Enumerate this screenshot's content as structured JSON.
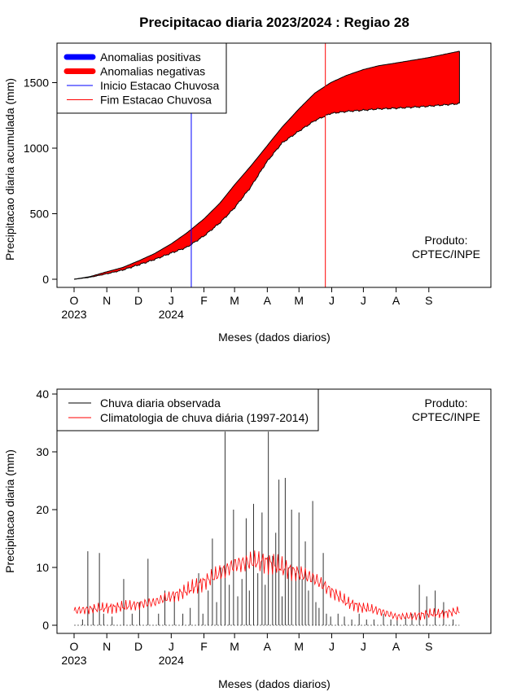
{
  "chart_data": [
    {
      "type": "area",
      "title": "Precipitacao diaria 2023/2024 : Regiao 28",
      "xlabel": "Meses (dados diarios)",
      "ylabel": "Precipitacao diaria acumulada (mm)",
      "ylim": [
        0,
        1750
      ],
      "yticks": [
        0,
        500,
        1000,
        1500
      ],
      "x_ticks": [
        "O",
        "N",
        "D",
        "J",
        "F",
        "M",
        "A",
        "M",
        "J",
        "J",
        "A",
        "S"
      ],
      "year_labels": [
        "2023",
        "2024"
      ],
      "x_unit": "days since 1 Oct 2023",
      "xlim": [
        0,
        366
      ],
      "legend_position": "top-left",
      "legend": [
        {
          "label": "Anomalias positivas",
          "color": "#0000ff",
          "style": "thick"
        },
        {
          "label": "Anomalias negativas",
          "color": "#ff0000",
          "style": "thick"
        },
        {
          "label": "Inicio Estacao Chuvosa",
          "color": "#0000ff",
          "style": "thin"
        },
        {
          "label": "Fim Estacao Chuvosa",
          "color": "#ff0000",
          "style": "thin"
        }
      ],
      "credit": [
        "Produto:",
        "CPTEC/INPE"
      ],
      "onset_day": 111,
      "end_day": 238,
      "series": [
        {
          "name": "Climatologia acumulada",
          "x": [
            0,
            15,
            30,
            46,
            61,
            76,
            92,
            107,
            123,
            138,
            152,
            167,
            182,
            197,
            213,
            228,
            243,
            258,
            274,
            289,
            305,
            320,
            335,
            350,
            365
          ],
          "values": [
            0,
            20,
            55,
            90,
            140,
            195,
            270,
            355,
            460,
            580,
            720,
            860,
            1010,
            1160,
            1300,
            1420,
            1500,
            1555,
            1600,
            1630,
            1650,
            1670,
            1690,
            1715,
            1740
          ]
        },
        {
          "name": "Observado acumulado",
          "x": [
            0,
            15,
            30,
            46,
            61,
            76,
            92,
            107,
            123,
            138,
            152,
            167,
            182,
            197,
            213,
            228,
            243,
            258,
            274,
            289,
            305,
            320,
            335,
            350,
            365
          ],
          "values": [
            0,
            15,
            40,
            70,
            110,
            150,
            200,
            245,
            330,
            430,
            545,
            700,
            890,
            1040,
            1130,
            1210,
            1265,
            1280,
            1290,
            1300,
            1305,
            1312,
            1320,
            1330,
            1340
          ]
        }
      ]
    },
    {
      "type": "line",
      "xlabel": "Meses (dados diarios)",
      "ylabel": "Precipitacao diaria (mm)",
      "ylim": [
        0,
        40
      ],
      "yticks": [
        0,
        10,
        20,
        30,
        40
      ],
      "x_ticks": [
        "O",
        "N",
        "D",
        "J",
        "F",
        "M",
        "A",
        "M",
        "J",
        "J",
        "A",
        "S"
      ],
      "year_labels": [
        "2023",
        "2024"
      ],
      "x_unit": "days since 1 Oct 2023",
      "xlim": [
        0,
        366
      ],
      "legend_position": "top-left",
      "legend": [
        {
          "label": "Chuva diaria observada",
          "color": "#000000"
        },
        {
          "label": "Climatologia de chuva diária (1997-2014)",
          "color": "#ff0000"
        }
      ],
      "credit": [
        "Produto:",
        "CPTEC/INPE"
      ],
      "series": [
        {
          "name": "Chuva diaria observada",
          "x": [
            8,
            13,
            18,
            24,
            28,
            36,
            47,
            55,
            62,
            70,
            80,
            86,
            95,
            103,
            110,
            118,
            122,
            127,
            131,
            135,
            139,
            143,
            147,
            151,
            155,
            159,
            163,
            166,
            170,
            174,
            178,
            181,
            184,
            188,
            191,
            194,
            197,
            200,
            203,
            206,
            210,
            213,
            216,
            219,
            222,
            226,
            229,
            232,
            236,
            239,
            243,
            250,
            256,
            263,
            270,
            277,
            284,
            293,
            300,
            306,
            314,
            320,
            327,
            334,
            342,
            350,
            359
          ],
          "values": [
            1,
            12.8,
            3,
            12.5,
            2,
            1.5,
            8,
            2,
            4,
            11.5,
            2,
            6,
            5,
            2,
            3,
            9,
            2,
            6,
            15,
            4,
            10,
            33.5,
            7,
            20,
            5,
            8,
            18.5,
            6,
            21,
            9,
            19.5,
            7,
            33.5,
            12,
            16,
            25.2,
            5,
            25.5,
            10,
            20,
            9,
            19.5,
            8,
            14.5,
            6,
            21.5,
            4,
            3,
            12.5,
            2,
            1.5,
            2,
            1.5,
            1,
            2,
            1,
            1,
            2,
            1,
            1,
            1.5,
            2,
            7,
            5,
            6,
            4,
            1
          ]
        },
        {
          "name": "Climatologia de chuva diária (1997-2014)",
          "x": [
            0,
            15,
            30,
            46,
            61,
            76,
            92,
            107,
            123,
            138,
            152,
            167,
            182,
            197,
            213,
            228,
            243,
            258,
            274,
            289,
            305,
            320,
            335,
            350,
            365
          ],
          "values": [
            2.5,
            2.8,
            3.0,
            3.2,
            3.6,
            4.0,
            5.0,
            6.0,
            7.5,
            9.0,
            10.5,
            11.0,
            11.0,
            10.0,
            9.0,
            8.0,
            6.0,
            4.0,
            3.0,
            2.5,
            1.5,
            1.5,
            2.0,
            2.0,
            2.5
          ]
        }
      ]
    }
  ]
}
